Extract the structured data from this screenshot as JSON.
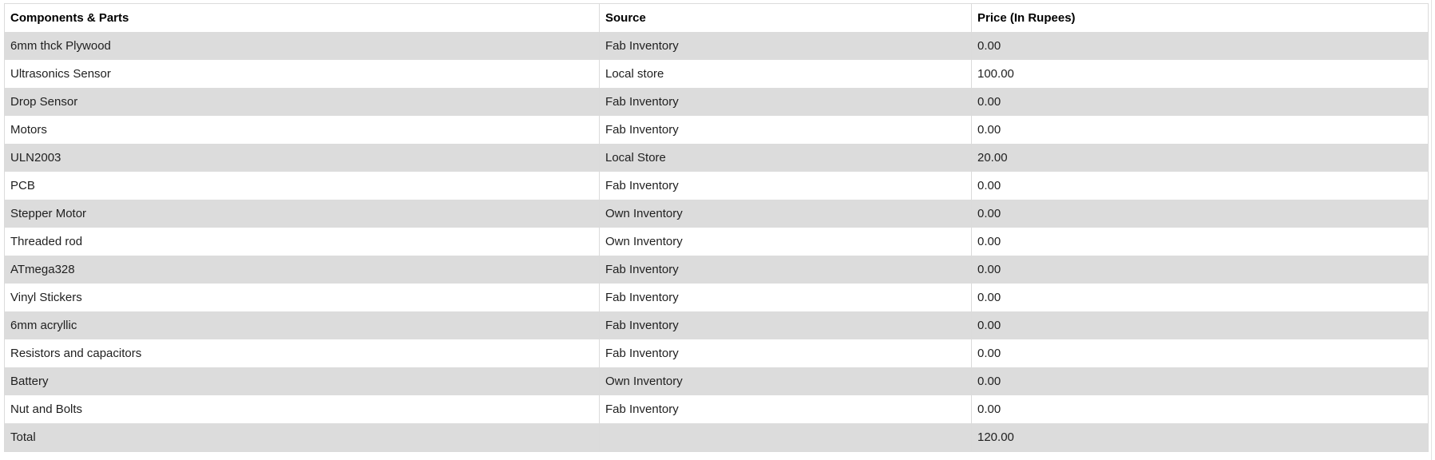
{
  "table": {
    "columns": [
      {
        "label": "Components & Parts"
      },
      {
        "label": "Source"
      },
      {
        "label": "Price (In Rupees)"
      }
    ],
    "rows": [
      {
        "component": "6mm thck Plywood",
        "source": "Fab Inventory",
        "price": "0.00"
      },
      {
        "component": "Ultrasonics Sensor",
        "source": "Local store",
        "price": "100.00"
      },
      {
        "component": "Drop Sensor",
        "source": "Fab Inventory",
        "price": "0.00"
      },
      {
        "component": "Motors",
        "source": "Fab Inventory",
        "price": "0.00"
      },
      {
        "component": "ULN2003",
        "source": "Local Store",
        "price": "20.00"
      },
      {
        "component": "PCB",
        "source": "Fab Inventory",
        "price": "0.00"
      },
      {
        "component": "Stepper Motor",
        "source": "Own Inventory",
        "price": "0.00"
      },
      {
        "component": "Threaded rod",
        "source": "Own Inventory",
        "price": "0.00"
      },
      {
        "component": "ATmega328",
        "source": "Fab Inventory",
        "price": "0.00"
      },
      {
        "component": "Vinyl Stickers",
        "source": "Fab Inventory",
        "price": "0.00"
      },
      {
        "component": "6mm acryllic",
        "source": "Fab Inventory",
        "price": "0.00"
      },
      {
        "component": "Resistors and capacitors",
        "source": "Fab Inventory",
        "price": "0.00"
      },
      {
        "component": "Battery",
        "source": "Own Inventory",
        "price": "0.00"
      },
      {
        "component": "Nut and Bolts",
        "source": "Fab Inventory",
        "price": "0.00"
      },
      {
        "component": "Total",
        "source": "",
        "price": "120.00"
      }
    ]
  },
  "colors": {
    "alt_row_bg": "#dcdcdc",
    "table_border": "#dbdbdb",
    "header_text": "#000000",
    "body_text": "#1f1f1f",
    "page_bg": "#ffffff"
  }
}
